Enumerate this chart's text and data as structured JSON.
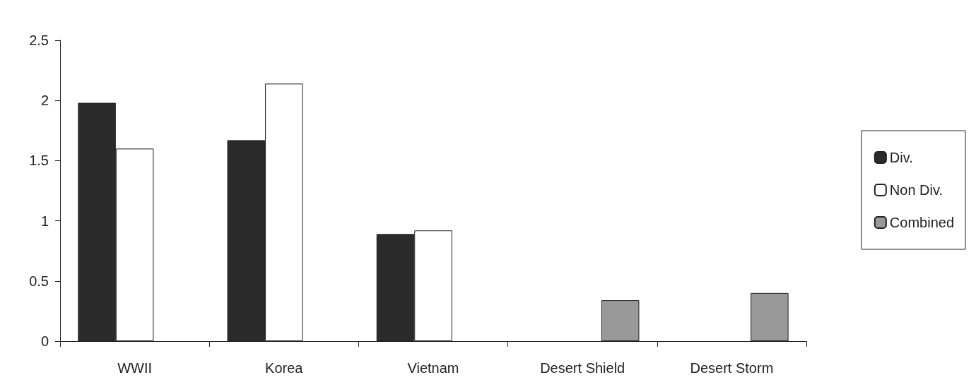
{
  "chart_data": {
    "type": "bar",
    "categories": [
      "WWII",
      "Korea",
      "Vietnam",
      "Desert Shield",
      "Desert Storm"
    ],
    "series": [
      {
        "name": "Div.",
        "color": "#2b2b2b",
        "values": [
          1.98,
          1.67,
          0.89,
          null,
          null
        ]
      },
      {
        "name": "Non Div.",
        "color": "#ffffff",
        "values": [
          1.6,
          2.14,
          0.92,
          null,
          null
        ]
      },
      {
        "name": "Combined",
        "color": "#999999",
        "values": [
          null,
          null,
          null,
          0.34,
          0.4
        ]
      }
    ],
    "ylim": [
      0,
      2.5
    ],
    "yticks": [
      0,
      0.5,
      1,
      1.5,
      2,
      2.5
    ],
    "grid": false,
    "legend": "right"
  }
}
